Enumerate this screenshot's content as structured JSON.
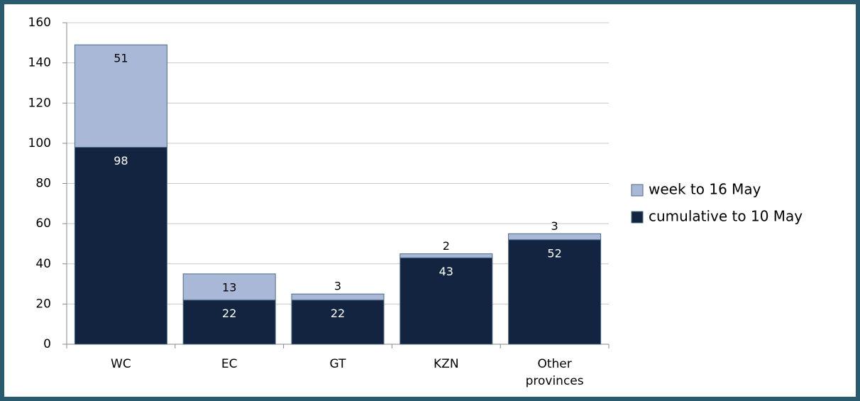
{
  "chart_data": {
    "type": "stacked_bar",
    "categories": [
      "WC",
      "EC",
      "GT",
      "KZN",
      "Other provinces"
    ],
    "series": [
      {
        "name": "cumulative to 10 May",
        "color": "#12243f",
        "values": [
          98,
          22,
          22,
          43,
          52
        ]
      },
      {
        "name": "week to 16 May",
        "color": "#a9b8d6",
        "values": [
          51,
          13,
          3,
          2,
          3
        ]
      }
    ],
    "ylim": [
      0,
      160
    ],
    "yticks": [
      0,
      20,
      40,
      60,
      80,
      100,
      120,
      140,
      160
    ],
    "grid": true,
    "legend": "right"
  }
}
